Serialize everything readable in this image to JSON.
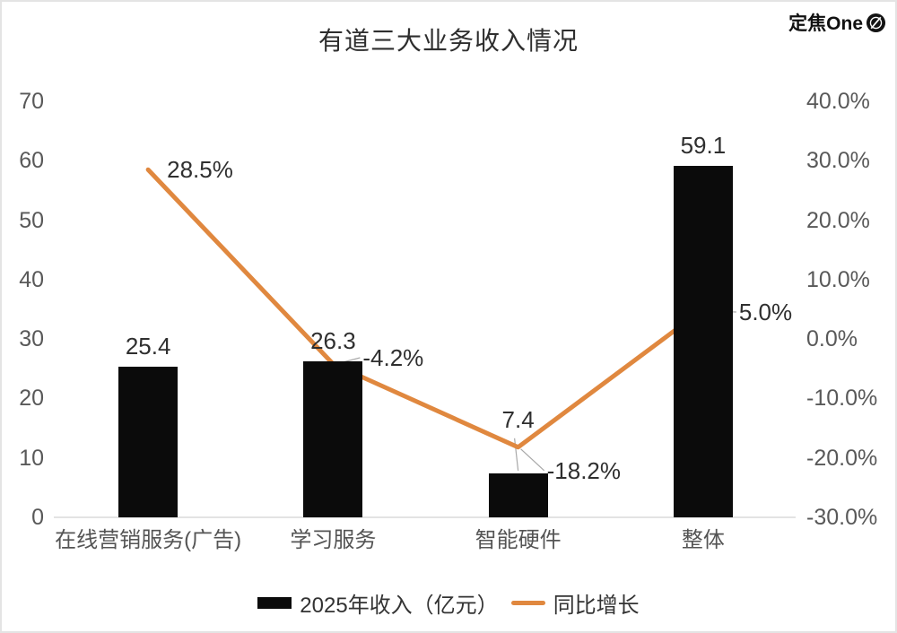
{
  "watermark": {
    "text": "定焦One"
  },
  "chart_data": {
    "type": "bar+line",
    "title": "有道三大业务收入情况",
    "categories": [
      "在线营销服务(广告)",
      "学习服务",
      "智能硬件",
      "整体"
    ],
    "series": [
      {
        "name": "2025年收入（亿元）",
        "type": "bar",
        "color": "#0b0b0b",
        "values": [
          25.4,
          26.3,
          7.4,
          59.1
        ],
        "labels": [
          "25.4",
          "26.3",
          "7.4",
          "59.1"
        ]
      },
      {
        "name": "同比增长",
        "type": "line",
        "color": "#e0883f",
        "values": [
          28.5,
          -4.2,
          -18.2,
          5.0
        ],
        "labels": [
          "28.5%",
          "-4.2%",
          "-18.2%",
          "5.0%"
        ]
      }
    ],
    "left_axis": {
      "min": 0,
      "max": 70,
      "step": 10,
      "ticks": [
        "0",
        "10",
        "20",
        "30",
        "40",
        "50",
        "60",
        "70"
      ]
    },
    "right_axis": {
      "min": -30,
      "max": 40,
      "step": 10,
      "ticks": [
        "-30.0%",
        "-20.0%",
        "-10.0%",
        "0.0%",
        "10.0%",
        "20.0%",
        "30.0%",
        "40.0%"
      ]
    },
    "grid": false,
    "legend_position": "bottom",
    "baseline_color": "#e3e3e3",
    "connector_color": "#a8a8a8"
  }
}
